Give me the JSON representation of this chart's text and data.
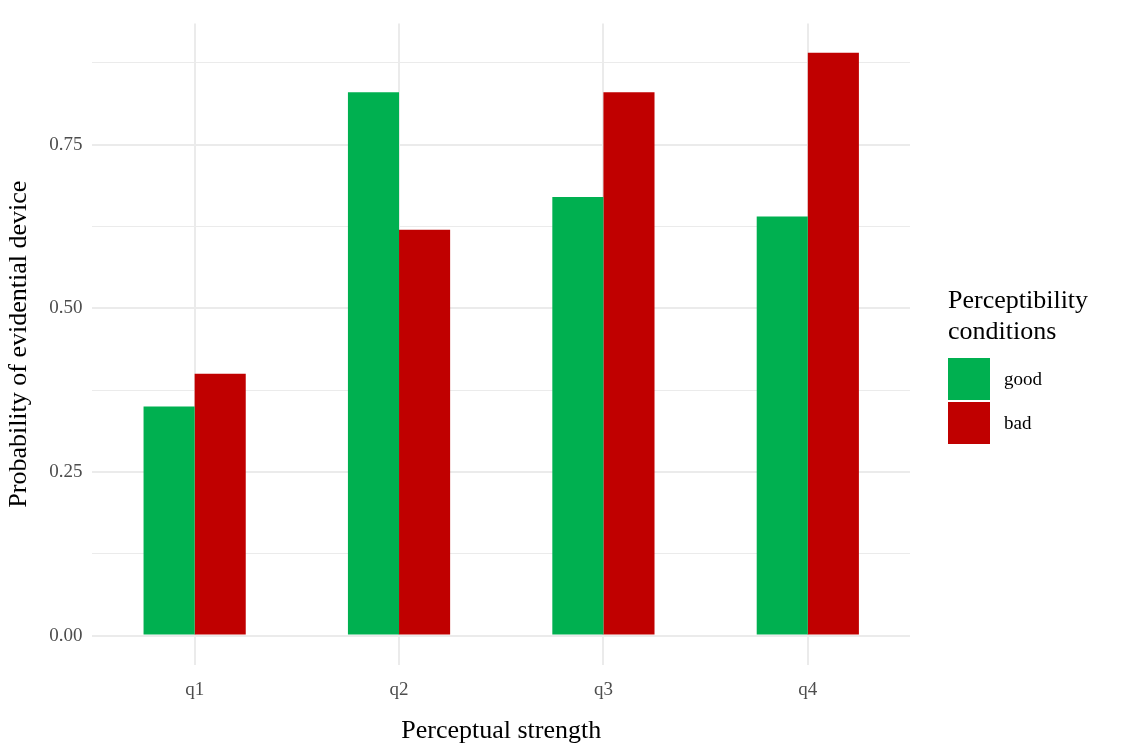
{
  "chart_data": {
    "type": "bar",
    "xlabel": "Perceptual strength",
    "ylabel": "Probability of evidential device",
    "legend_title": "Perceptibility conditions",
    "categories": [
      "q1",
      "q2",
      "q3",
      "q4"
    ],
    "series": [
      {
        "name": "good",
        "color": "#00b050",
        "values": [
          0.35,
          0.83,
          0.67,
          0.64
        ]
      },
      {
        "name": "bad",
        "color": "#c00000",
        "values": [
          0.4,
          0.62,
          0.83,
          0.89
        ]
      }
    ],
    "ylim": [
      -0.045,
      0.935
    ],
    "yticks": [
      {
        "value": 0,
        "label": "0.00"
      },
      {
        "value": 0.25,
        "label": "0.25"
      },
      {
        "value": 0.5,
        "label": "0.50"
      },
      {
        "value": 0.75,
        "label": "0.75"
      }
    ],
    "grid": true,
    "legend": "right"
  }
}
